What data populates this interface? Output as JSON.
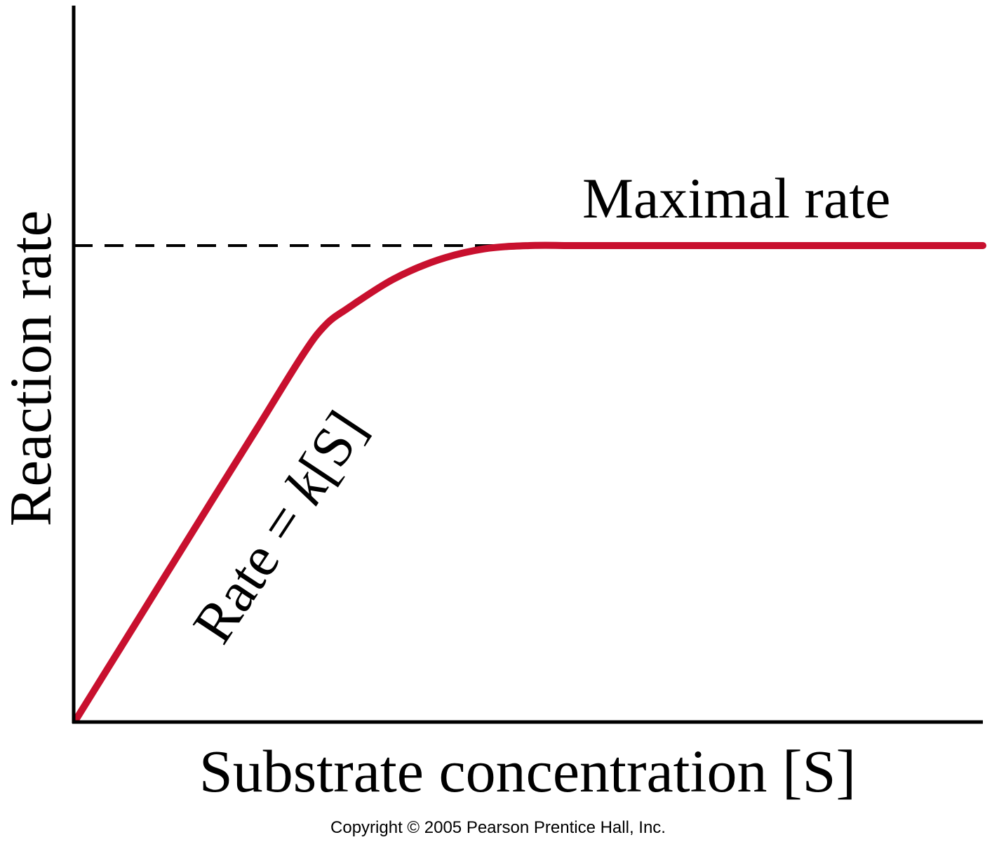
{
  "chart_data": {
    "type": "line",
    "xlabel": "Substrate concentration [S]",
    "ylabel": "Reaction rate",
    "ticks": "none",
    "grid": false,
    "legend": "none",
    "series": [
      {
        "x": [
          0,
          0.05,
          0.1,
          0.15,
          0.2,
          0.25,
          0.275,
          0.3,
          0.35,
          0.4,
          0.45,
          0.5,
          0.55,
          0.6,
          0.65,
          0.7,
          0.75,
          0.8,
          0.85,
          0.9,
          0.95,
          1.0
        ],
        "y": [
          0,
          0.154,
          0.308,
          0.462,
          0.615,
          0.769,
          0.832,
          0.868,
          0.929,
          0.97,
          0.993,
          1.0,
          1.0,
          1.0,
          1.0,
          1.0,
          1.0,
          1.0,
          1.0,
          1.0,
          1.0,
          1.0
        ]
      }
    ],
    "annotations": {
      "max_label": "Maximal rate",
      "slope_prefix": "Rate = ",
      "slope_k": "k",
      "slope_suffix": "[S]"
    },
    "colors": {
      "curve": "#c8102e",
      "axis": "#000000",
      "dashed_line": "#000000"
    }
  },
  "footer": {
    "copyright": "Copyright © 2005 Pearson Prentice Hall, Inc."
  }
}
